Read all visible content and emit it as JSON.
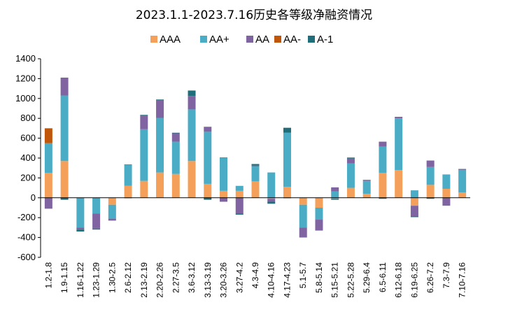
{
  "chart_data": {
    "type": "bar",
    "stacked": true,
    "title": "2023.1.1-2023.7.16历史各等级净融资情况",
    "xlabel": "",
    "ylabel": "",
    "ylim": [
      -600,
      1400
    ],
    "yticks": [
      -600,
      -400,
      -200,
      0,
      200,
      400,
      600,
      800,
      1000,
      1200,
      1400
    ],
    "grid": false,
    "legend_position": "top",
    "categories": [
      "1.2-1.8",
      "1.9-1.15",
      "1.16-1.22",
      "1.23-1.29",
      "1.30-2.5",
      "2.6-2.12",
      "2.13-2.19",
      "2.20-2.26",
      "2.27-3.5",
      "3.6-3.12",
      "3.13-3.19",
      "3.20-3.26",
      "3.27-4.2",
      "4.3-4.9",
      "4.10-4.16",
      "4.17-4.23",
      "5.1-5.7",
      "5.8-5.14",
      "5.15-5.21",
      "5.22-5.28",
      "5.29-6.4",
      "6.5-6.11",
      "6.12-6.18",
      "6.19-6.25",
      "6.26-7.2",
      "7.3-7.9",
      "7.10-7.16"
    ],
    "series": [
      {
        "name": "AAA",
        "color": "#F4A05B",
        "values": [
          250,
          370,
          0,
          0,
          -70,
          120,
          170,
          255,
          240,
          370,
          140,
          70,
          70,
          165,
          -10,
          110,
          -70,
          -100,
          -10,
          100,
          40,
          250,
          280,
          -80,
          130,
          90,
          55
        ]
      },
      {
        "name": "AA+",
        "color": "#4BACC6",
        "values": [
          300,
          660,
          -300,
          -160,
          -140,
          210,
          520,
          550,
          325,
          520,
          525,
          330,
          50,
          150,
          255,
          545,
          -230,
          -120,
          65,
          245,
          130,
          265,
          520,
          75,
          180,
          145,
          225
        ]
      },
      {
        "name": "AA",
        "color": "#8064A2",
        "values": [
          -110,
          180,
          -20,
          -150,
          -20,
          -5,
          140,
          180,
          85,
          135,
          50,
          -40,
          -160,
          10,
          -30,
          -5,
          -100,
          -110,
          40,
          50,
          5,
          50,
          10,
          -105,
          65,
          -80,
          5
        ]
      },
      {
        "name": "AA-",
        "color": "#C0560A",
        "values": [
          150,
          0,
          0,
          0,
          0,
          0,
          0,
          0,
          0,
          0,
          0,
          0,
          0,
          0,
          0,
          0,
          0,
          0,
          0,
          0,
          0,
          0,
          0,
          0,
          0,
          0,
          0
        ]
      },
      {
        "name": "A-1",
        "color": "#1F6E7A",
        "values": [
          0,
          -20,
          -20,
          -10,
          0,
          5,
          5,
          5,
          5,
          55,
          -20,
          5,
          -10,
          15,
          -20,
          50,
          0,
          0,
          -10,
          10,
          5,
          -10,
          5,
          -10,
          -10,
          0,
          5
        ]
      }
    ]
  }
}
